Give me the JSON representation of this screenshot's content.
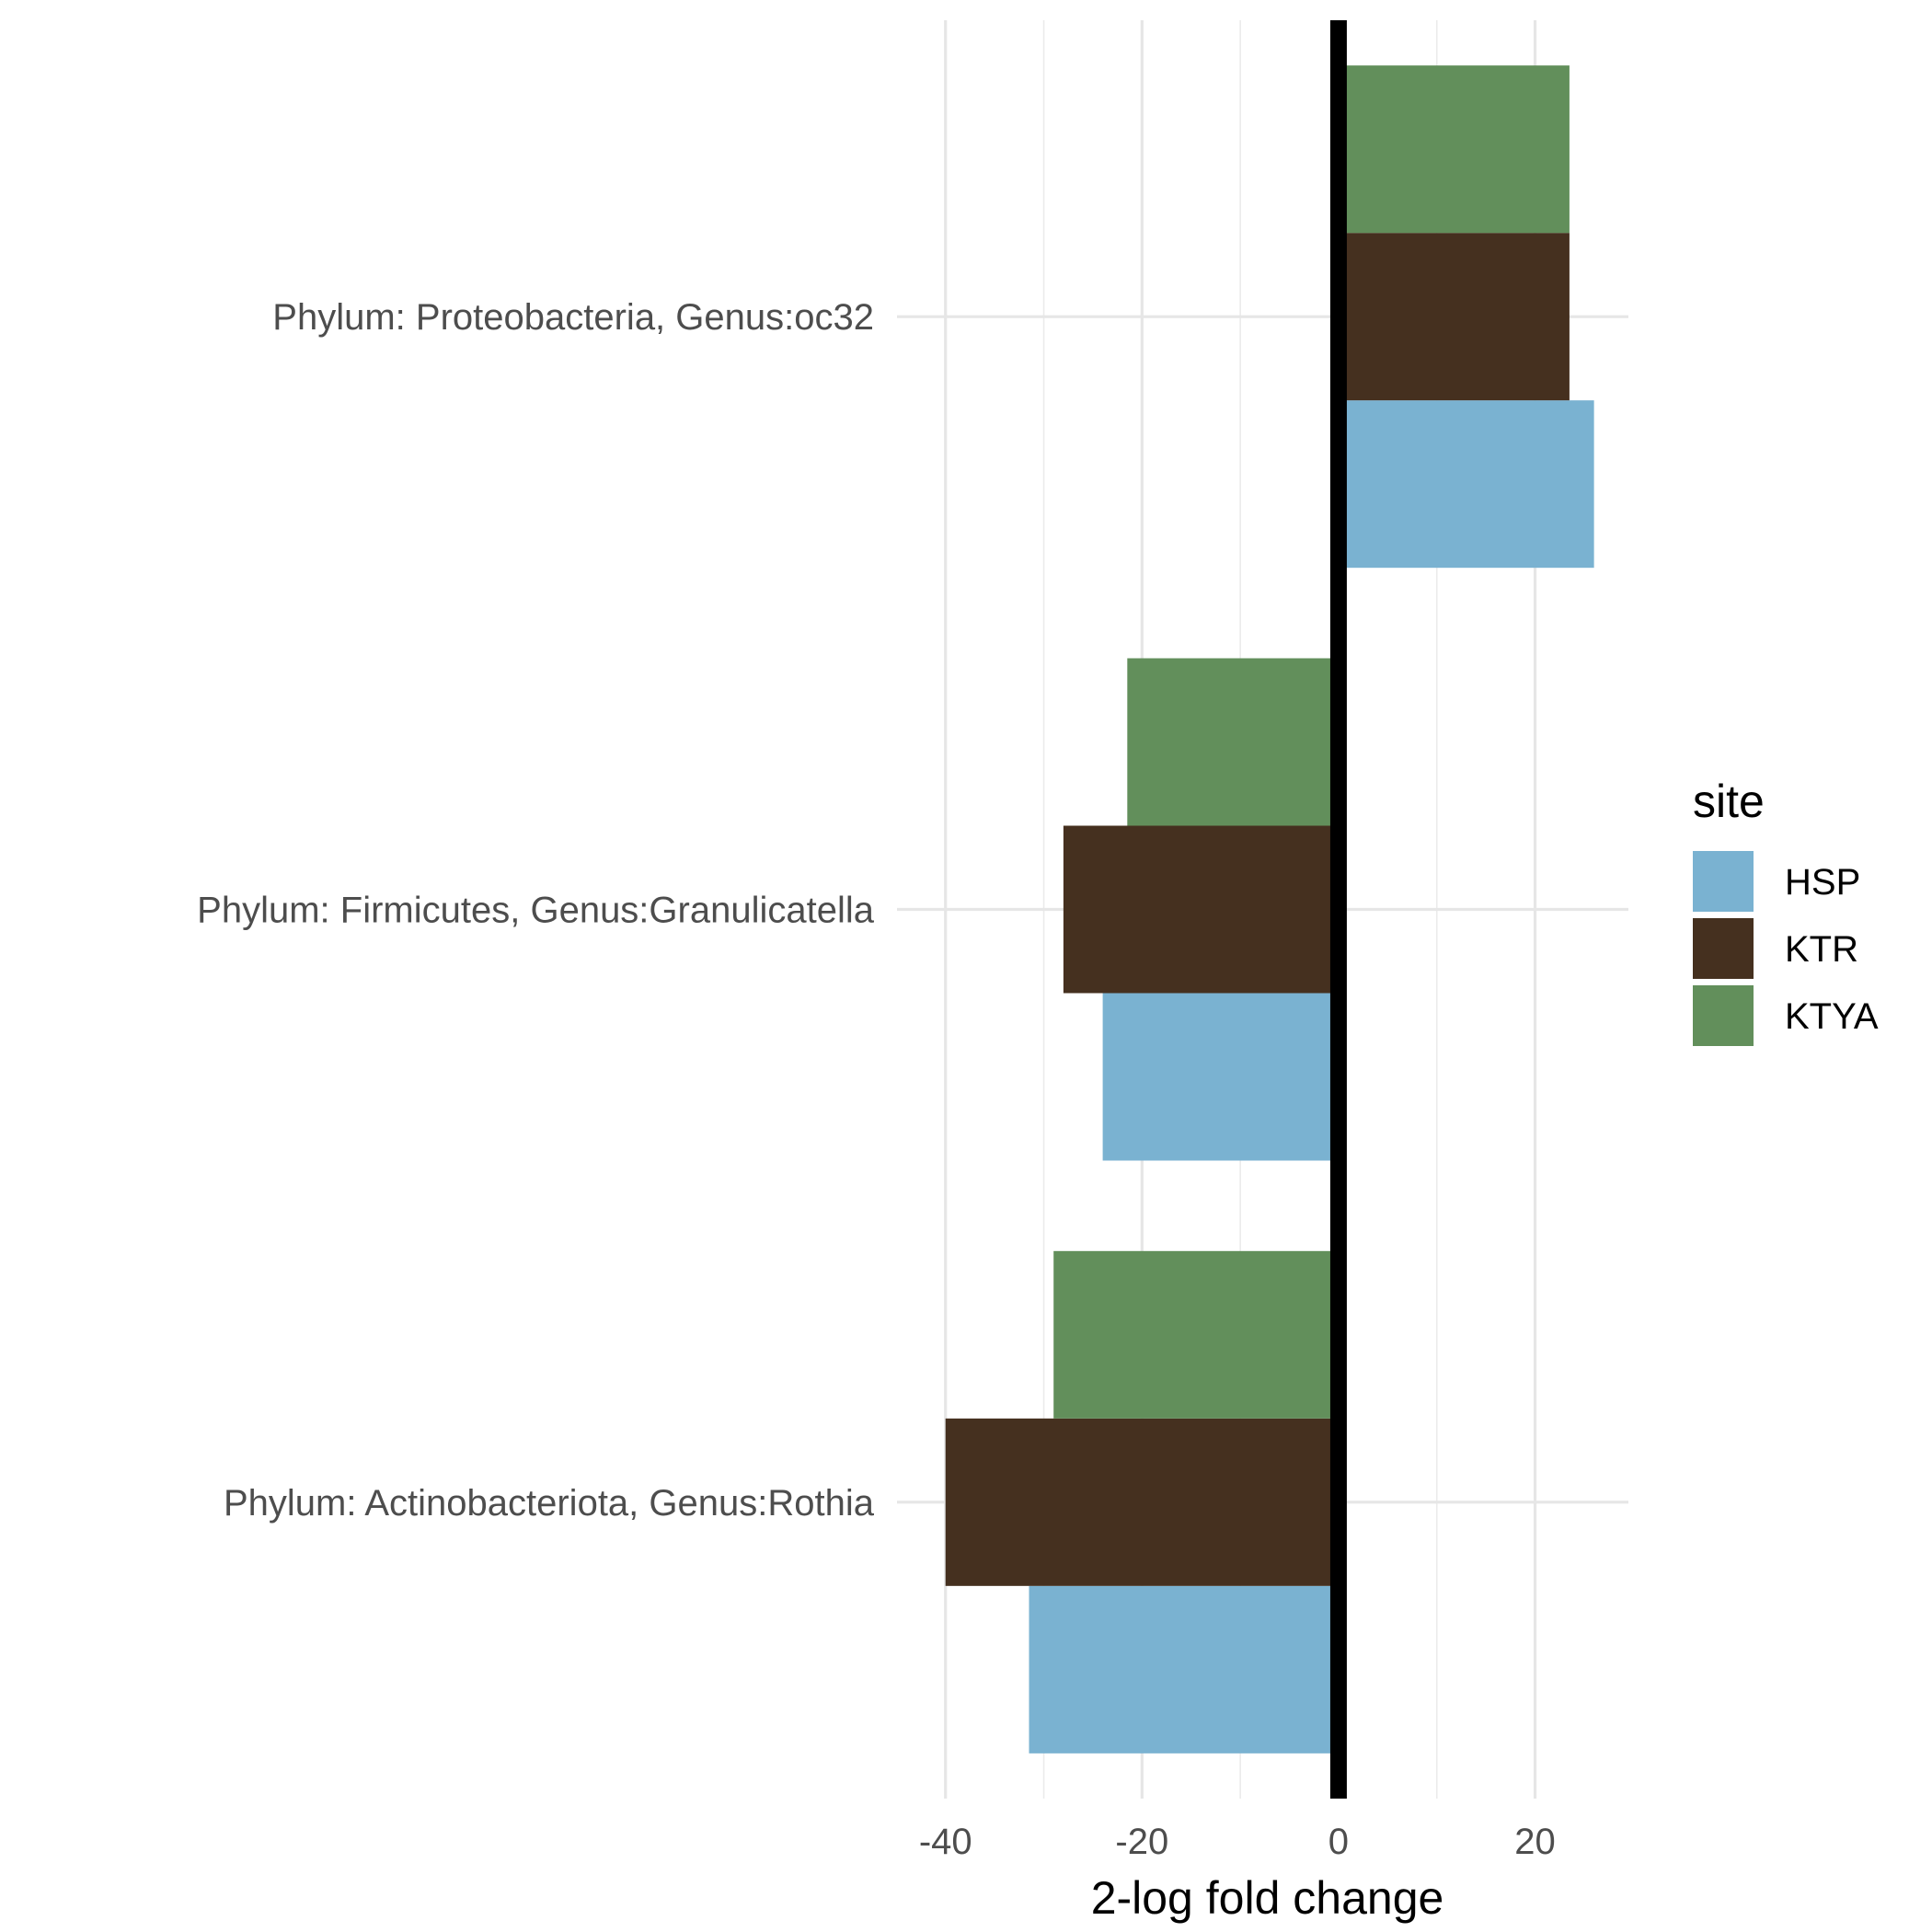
{
  "chart_data": {
    "type": "bar",
    "orientation": "horizontal",
    "categories": [
      "Phylum: Proteobacteria, Genus:oc32",
      "Phylum: Firmicutes, Genus:Granulicatella",
      "Phylum: Actinobacteriota, Genus:Rothia"
    ],
    "series": [
      {
        "name": "HSP",
        "color": "#7AB2D1",
        "values": [
          26,
          -24,
          -31.5
        ]
      },
      {
        "name": "KTR",
        "color": "#45301F",
        "values": [
          23.5,
          -28,
          -40
        ]
      },
      {
        "name": "KTYA",
        "color": "#628F5B",
        "values": [
          23.5,
          -21.5,
          -29
        ]
      }
    ],
    "xlabel": "2-log fold change",
    "ylabel": "",
    "xlim": [
      -44,
      29.5
    ],
    "xticks": [
      -40,
      -20,
      0,
      20
    ],
    "xtick_labels": [
      "-40",
      "-20",
      "0",
      "20"
    ],
    "minor_xticks": [
      -30,
      -10,
      10
    ],
    "grid": true,
    "zero_line": true,
    "zero_line_color": "#000000",
    "legend": {
      "title": "site",
      "position": "right"
    }
  }
}
